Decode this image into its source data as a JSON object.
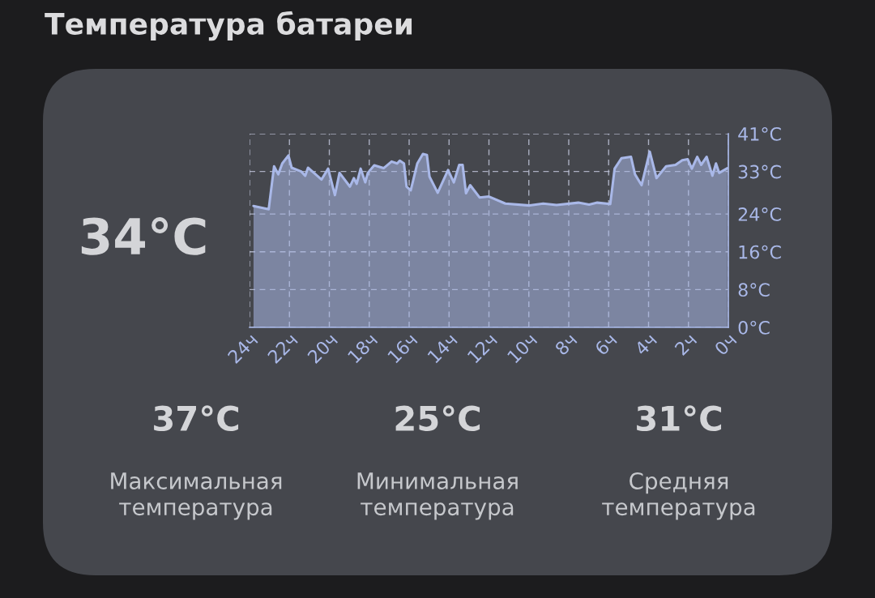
{
  "chart_data": {
    "type": "area",
    "title": "Температура батареи",
    "x": [
      23.8,
      23.04,
      22.77,
      22.56,
      22.36,
      22.05,
      21.89,
      21.41,
      21.21,
      21.07,
      20.39,
      20.06,
      19.72,
      19.49,
      18.97,
      18.77,
      18.63,
      18.43,
      18.2,
      18.07,
      17.75,
      17.28,
      16.88,
      16.6,
      16.47,
      16.26,
      16.13,
      15.92,
      15.59,
      15.31,
      15.11,
      14.98,
      14.57,
      14.3,
      14.05,
      13.76,
      13.49,
      13.32,
      13.15,
      12.94,
      12.47,
      12.0,
      11.18,
      9.96,
      9.28,
      8.61,
      7.52,
      6.98,
      6.57,
      5.92,
      5.7,
      5.36,
      4.88,
      4.68,
      4.35,
      3.94,
      3.6,
      3.12,
      2.65,
      2.31,
      2.04,
      1.83,
      1.56,
      1.36,
      1.09,
      0.8,
      0.62,
      0.46,
      0.05
    ],
    "values": [
      25.7,
      25.0,
      34.1,
      32.4,
      34.7,
      36.4,
      33.8,
      33.0,
      32.1,
      33.8,
      31.3,
      33.6,
      28.0,
      32.7,
      29.8,
      31.6,
      30.4,
      33.6,
      30.7,
      32.7,
      34.3,
      33.7,
      35.1,
      34.7,
      35.3,
      34.7,
      29.8,
      29.0,
      34.7,
      36.7,
      36.5,
      31.9,
      28.5,
      31.0,
      33.3,
      30.7,
      34.4,
      34.4,
      28.4,
      30.1,
      27.5,
      27.7,
      26.2,
      25.8,
      26.2,
      25.9,
      26.4,
      26.0,
      26.4,
      26.1,
      33.6,
      35.8,
      36.1,
      32.4,
      30.1,
      37.2,
      31.6,
      34.1,
      34.4,
      35.4,
      35.6,
      33.6,
      36.1,
      34.4,
      36.1,
      32.1,
      34.7,
      32.7,
      33.7
    ],
    "color": "#a9b8e8",
    "xlim": [
      24,
      0
    ],
    "xticks": [
      {
        "value": 24,
        "label": "24ч"
      },
      {
        "value": 22,
        "label": "22ч"
      },
      {
        "value": 20,
        "label": "20ч"
      },
      {
        "value": 18,
        "label": "18ч"
      },
      {
        "value": 16,
        "label": "16ч"
      },
      {
        "value": 14,
        "label": "14ч"
      },
      {
        "value": 12,
        "label": "12ч"
      },
      {
        "value": 10,
        "label": "10ч"
      },
      {
        "value": 8,
        "label": "8ч"
      },
      {
        "value": 6,
        "label": "6ч"
      },
      {
        "value": 4,
        "label": "4ч"
      },
      {
        "value": 2,
        "label": "2ч"
      },
      {
        "value": 0,
        "label": "0ч"
      }
    ],
    "ylim": [
      0,
      41
    ],
    "yticks": [
      {
        "value": 0,
        "label": "0°C"
      },
      {
        "value": 8,
        "label": "8°C"
      },
      {
        "value": 16,
        "label": "16°C"
      },
      {
        "value": 24,
        "label": "24°C"
      },
      {
        "value": 33,
        "label": "33°C"
      },
      {
        "value": 41,
        "label": "41°C"
      }
    ],
    "grid": true,
    "annotations": [
      "34°C",
      "37°C",
      "Максимальная\nтемпература",
      "25°C",
      "Минимальная\nтемпература",
      "31°C",
      "Средняя\nтемпература"
    ]
  }
}
